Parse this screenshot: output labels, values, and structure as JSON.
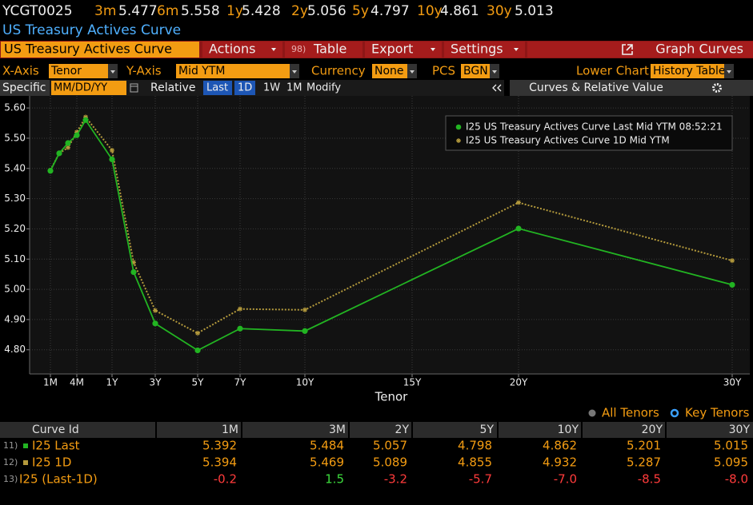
{
  "header": {
    "code": "YCGT0025",
    "quotes": [
      {
        "tenor": "3m",
        "value": "5.477"
      },
      {
        "tenor": "6m",
        "value": "5.558"
      },
      {
        "tenor": "1y",
        "value": "5.428"
      },
      {
        "tenor": "2y",
        "value": "5.056"
      },
      {
        "tenor": "5y",
        "value": "4.797"
      },
      {
        "tenor": "10y",
        "value": "4.861"
      },
      {
        "tenor": "30y",
        "value": "5.013"
      }
    ],
    "subtitle": "US Treasury Actives Curve"
  },
  "toolbar": {
    "curve": "US Treasury Actives Curve",
    "actions": "Actions",
    "table_tag": "98)",
    "table": "Table",
    "export": "Export",
    "settings": "Settings",
    "graph": "Graph Curves"
  },
  "settings_row": [
    {
      "label": "X-Axis",
      "value": "Tenor"
    },
    {
      "label": "Y-Axis",
      "value": "Mid YTM"
    },
    {
      "label": "Currency",
      "value": "None"
    },
    {
      "label": "PCS",
      "value": "BGN"
    },
    {
      "label": "Lower Chart",
      "value": "History Table"
    }
  ],
  "range_row": {
    "specific": "Specific",
    "date": "MM/DD/YY",
    "relative": "Relative",
    "options": [
      "Last",
      "1D",
      "1W",
      "1M"
    ],
    "modify": "Modify",
    "panel": "Curves & Relative Value"
  },
  "chart_data": {
    "type": "line",
    "x_label": "Tenor",
    "x": [
      1,
      2,
      3,
      4,
      6,
      12,
      24,
      36,
      60,
      84,
      120,
      240,
      360
    ],
    "series": [
      {
        "name": "I25 US Treasury Actives Curve Last Mid YTM 08:52:21",
        "color": "#22b422",
        "marker": "circle",
        "values": [
          5.392,
          5.45,
          5.484,
          5.51,
          5.56,
          5.43,
          5.057,
          4.887,
          4.798,
          4.87,
          4.862,
          5.201,
          5.015
        ]
      },
      {
        "name": "I25 US Treasury Actives Curve 1D Mid YTM",
        "color": "#b49a3c",
        "marker": "star",
        "dashed": true,
        "values": [
          5.394,
          5.45,
          5.469,
          5.52,
          5.57,
          5.46,
          5.089,
          4.93,
          4.855,
          4.935,
          4.932,
          5.287,
          5.095
        ]
      }
    ],
    "xlim": [
      0,
      370
    ],
    "xticks": [
      {
        "value": 1,
        "label": "1M"
      },
      {
        "value": 4,
        "label": "4M"
      },
      {
        "value": 12,
        "label": "1Y"
      },
      {
        "value": 36,
        "label": "3Y"
      },
      {
        "value": 60,
        "label": "5Y"
      },
      {
        "value": 84,
        "label": "7Y"
      },
      {
        "value": 120,
        "label": "10Y"
      },
      {
        "value": 180,
        "label": "15Y"
      },
      {
        "value": 240,
        "label": "20Y"
      },
      {
        "value": 360,
        "label": "30Y"
      }
    ],
    "ylim": [
      4.72,
      5.64
    ],
    "yticks": [
      {
        "value": 4.8,
        "label": "4.80"
      },
      {
        "value": 4.9,
        "label": "4.90"
      },
      {
        "value": 5.0,
        "label": "5.00"
      },
      {
        "value": 5.1,
        "label": "5.10"
      },
      {
        "value": 5.2,
        "label": "5.20"
      },
      {
        "value": 5.3,
        "label": "5.30"
      },
      {
        "value": 5.4,
        "label": "5.40"
      },
      {
        "value": 5.5,
        "label": "5.50"
      },
      {
        "value": 5.6,
        "label": "5.60"
      }
    ],
    "grid": true,
    "legend": "top-right"
  },
  "tenor_options": [
    "All Tenors",
    "Key Tenors"
  ],
  "table": {
    "header": [
      "Curve Id",
      "1M",
      "3M",
      "2Y",
      "5Y",
      "10Y",
      "20Y",
      "30Y"
    ],
    "rows": [
      {
        "num": "11)",
        "id": "I25 Last",
        "cells": [
          "5.392",
          "5.484",
          "5.057",
          "4.798",
          "4.862",
          "5.201",
          "5.015"
        ]
      },
      {
        "num": "12)",
        "id": "I25 1D",
        "cells": [
          "5.394",
          "5.469",
          "5.089",
          "4.855",
          "4.932",
          "5.287",
          "5.095"
        ]
      },
      {
        "num": "13)",
        "id": "I25 (Last-1D)",
        "cells": [
          "-0.2",
          "1.5",
          "-3.2",
          "-5.7",
          "-7.0",
          "-8.5",
          "-8.0"
        ]
      }
    ]
  }
}
